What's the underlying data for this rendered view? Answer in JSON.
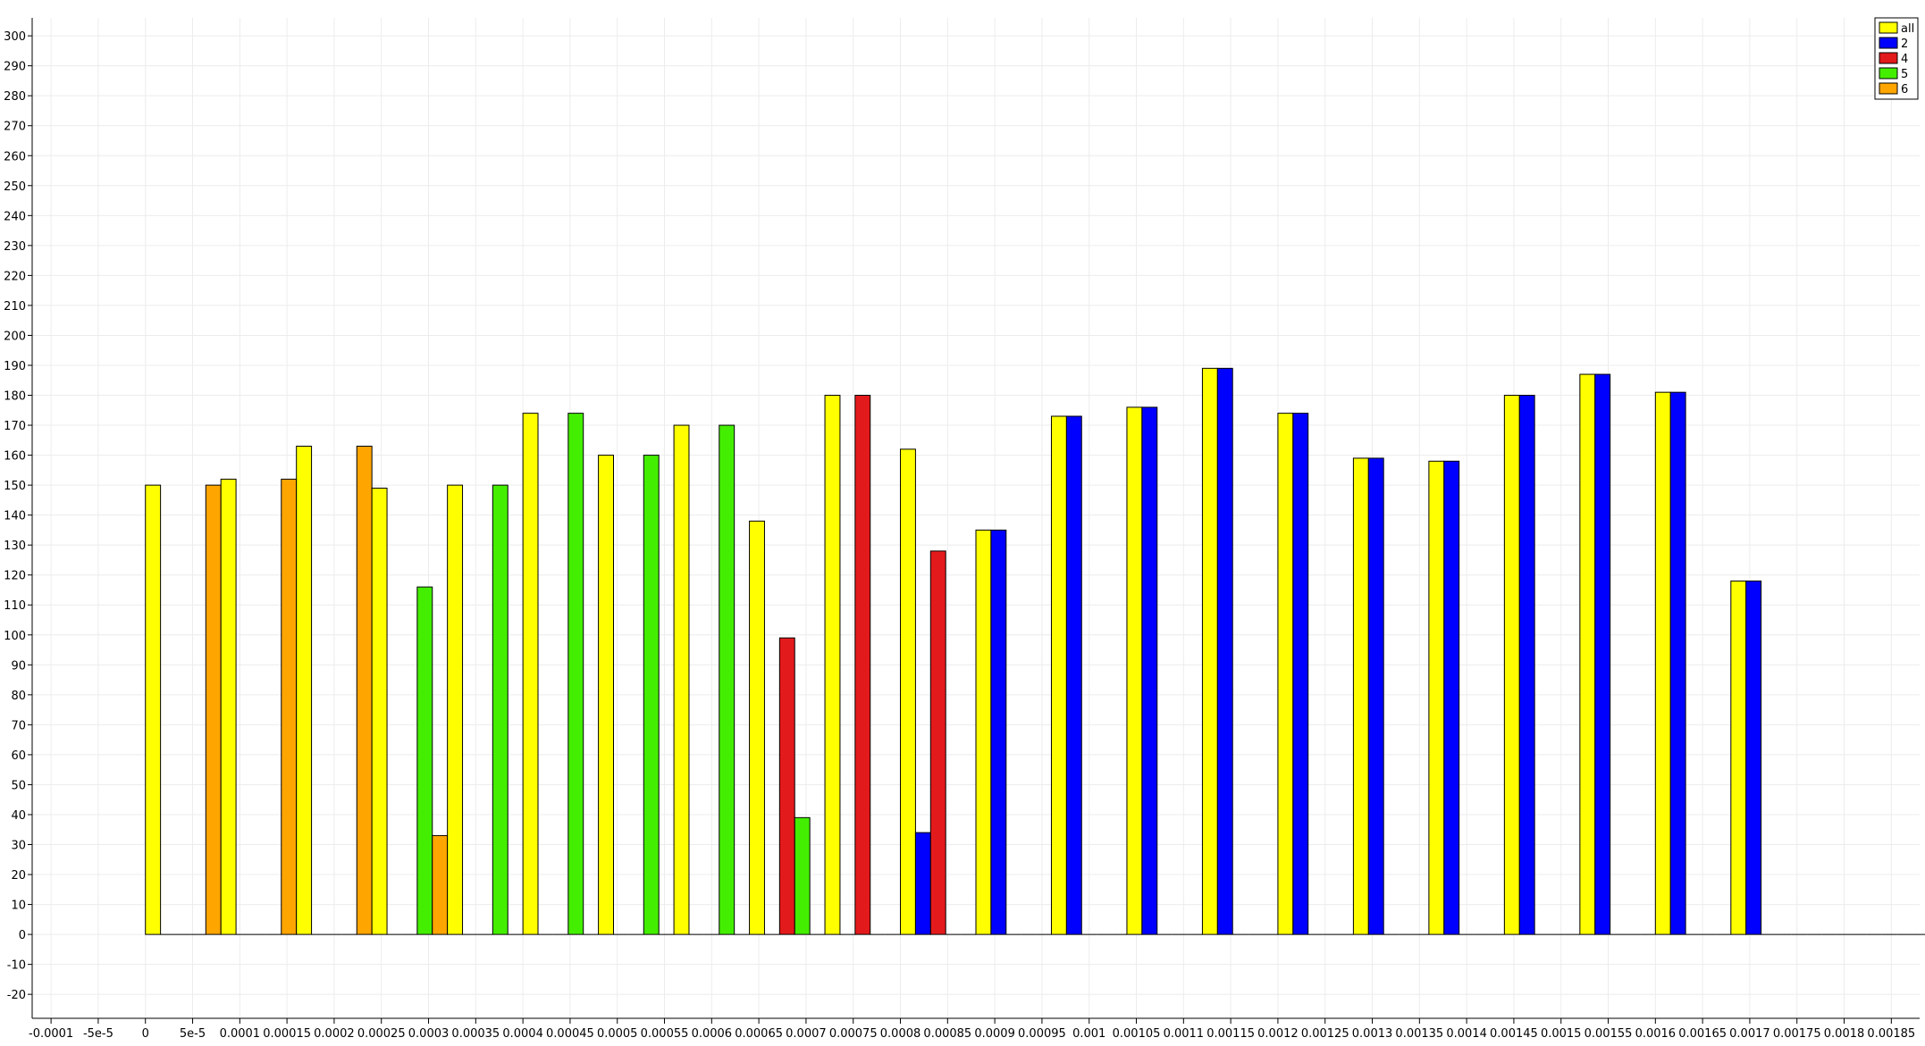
{
  "chart_data": {
    "type": "bar",
    "title": "",
    "xlabel": "",
    "ylabel": "",
    "xlim": [
      -0.00012,
      0.00188
    ],
    "ylim": [
      -28,
      306
    ],
    "x_ticks": [
      -0.0001,
      -5e-05,
      0,
      5e-05,
      0.0001,
      0.00015,
      0.0002,
      0.00025,
      0.0003,
      0.00035,
      0.0004,
      0.00045,
      0.0005,
      0.00055,
      0.0006,
      0.00065,
      0.0007,
      0.00075,
      0.0008,
      0.00085,
      0.0009,
      0.00095,
      0.001,
      0.00105,
      0.0011,
      0.00115,
      0.0012,
      0.00125,
      0.0013,
      0.00135,
      0.0014,
      0.00145,
      0.0015,
      0.00155,
      0.0016,
      0.00165,
      0.0017,
      0.00175,
      0.0018,
      0.00185
    ],
    "x_tick_labels": [
      "-0.0001",
      "-5e-5",
      "0",
      "5e-5",
      "0.0001",
      "0.00015",
      "0.0002",
      "0.00025",
      "0.0003",
      "0.00035",
      "0.0004",
      "0.00045",
      "0.0005",
      "0.00055",
      "0.0006",
      "0.00065",
      "0.0007",
      "0.00075",
      "0.0008",
      "0.00085",
      "0.0009",
      "0.00095",
      "0.001",
      "0.00105",
      "0.0011",
      "0.00115",
      "0.0012",
      "0.00125",
      "0.0013",
      "0.00135",
      "0.0014",
      "0.00145",
      "0.0015",
      "0.00155",
      "0.0016",
      "0.00165",
      "0.0017",
      "0.00175",
      "0.0018",
      "0.00185"
    ],
    "y_ticks": [
      -20,
      -10,
      0,
      10,
      20,
      30,
      40,
      50,
      60,
      70,
      80,
      90,
      100,
      110,
      120,
      130,
      140,
      150,
      160,
      170,
      180,
      190,
      200,
      210,
      220,
      230,
      240,
      250,
      260,
      270,
      280,
      290,
      300
    ],
    "y_tick_labels": [
      "-20",
      "-10",
      "0",
      "10",
      "20",
      "30",
      "40",
      "50",
      "60",
      "70",
      "80",
      "90",
      "100",
      "110",
      "120",
      "130",
      "140",
      "150",
      "160",
      "170",
      "180",
      "190",
      "200",
      "210",
      "220",
      "230",
      "240",
      "250",
      "260",
      "270",
      "280",
      "290",
      "300"
    ],
    "grid": true,
    "legend_position": "top-right",
    "bin_starts": [
      0,
      8e-05,
      0.00016,
      0.00024,
      0.00032,
      0.0004,
      0.00048,
      0.00056,
      0.00064,
      0.00072,
      0.0008,
      0.00088,
      0.00096,
      0.00104,
      0.00112,
      0.0012,
      0.00128,
      0.00136,
      0.00144,
      0.00152,
      0.0016,
      0.00168,
      0.00176,
      0.00184
    ],
    "bin_width": 8e-05,
    "series": [
      {
        "name": "all",
        "color": "#ffff00",
        "values": [
          150,
          152,
          163,
          149,
          150,
          174,
          160,
          170,
          138,
          180,
          162,
          135,
          173,
          176,
          189,
          174,
          159,
          158,
          180,
          187,
          181,
          118,
          0,
          0
        ]
      },
      {
        "name": "2",
        "color": "#0000ff",
        "values": [
          0,
          0,
          0,
          0,
          0,
          0,
          0,
          0,
          0,
          0,
          34,
          135,
          173,
          176,
          189,
          174,
          159,
          158,
          180,
          187,
          181,
          118,
          0,
          0
        ]
      },
      {
        "name": "4",
        "color": "#e31a1c",
        "values": [
          0,
          0,
          0,
          0,
          0,
          0,
          0,
          0,
          99,
          180,
          128,
          0,
          0,
          0,
          0,
          0,
          0,
          0,
          0,
          0,
          0,
          0,
          0,
          0
        ]
      },
      {
        "name": "5",
        "color": "#44ee00",
        "values": [
          0,
          0,
          0,
          116,
          150,
          174,
          160,
          170,
          39,
          0,
          0,
          0,
          0,
          0,
          0,
          0,
          0,
          0,
          0,
          0,
          0,
          0,
          0,
          0
        ]
      },
      {
        "name": "6",
        "color": "#ffa500",
        "values": [
          150,
          152,
          163,
          33,
          0,
          0,
          0,
          0,
          0,
          0,
          0,
          0,
          0,
          0,
          0,
          0,
          0,
          0,
          0,
          0,
          0,
          0,
          0,
          0
        ]
      }
    ]
  }
}
